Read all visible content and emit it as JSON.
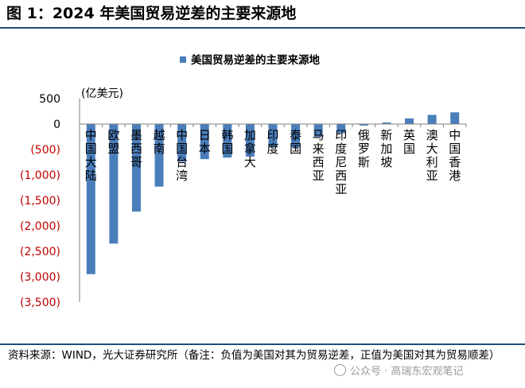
{
  "figure": {
    "title": "图 1：2024 年美国贸易逆差的主要来源地",
    "source": "资料来源：WIND，光大证券研究所（备注：负值为美国对其为贸易逆差，正值为美国对其为贸易顺差）",
    "watermark": "公众号 · 高瑞东宏观笔记"
  },
  "chart_data": {
    "type": "bar",
    "unit_label": "(亿美元)",
    "categories": [
      "中国大陆",
      "欧盟",
      "墨西哥",
      "越南",
      "中国台湾",
      "日本",
      "韩国",
      "加拿大",
      "印度",
      "泰国",
      "马来西亚",
      "印度尼西亚",
      "俄罗斯",
      "新加坡",
      "英国",
      "澳大利亚",
      "中国香港"
    ],
    "series": [
      {
        "name": "美国贸易逆差的主要来源地",
        "values": [
          -2950,
          -2350,
          -1720,
          -1230,
          -740,
          -690,
          -660,
          -640,
          -460,
          -460,
          -250,
          -180,
          -30,
          30,
          110,
          180,
          230
        ]
      }
    ],
    "ylim": [
      -3500,
      500
    ],
    "yticks": [
      500,
      0,
      -500,
      -1000,
      -1500,
      -2000,
      -2500,
      -3000,
      -3500
    ],
    "ytick_labels": [
      "500",
      "0",
      "(500)",
      "(1,000)",
      "(1,500)",
      "(2,000)",
      "(2,500)",
      "(3,000)",
      "(3,500)"
    ],
    "legend_position": "top-center",
    "grid": false,
    "colors": {
      "bar": "#4a7ebb",
      "positive_tick": "#000000",
      "negative_tick": "#c00000",
      "rule": "#1f4e79"
    }
  }
}
